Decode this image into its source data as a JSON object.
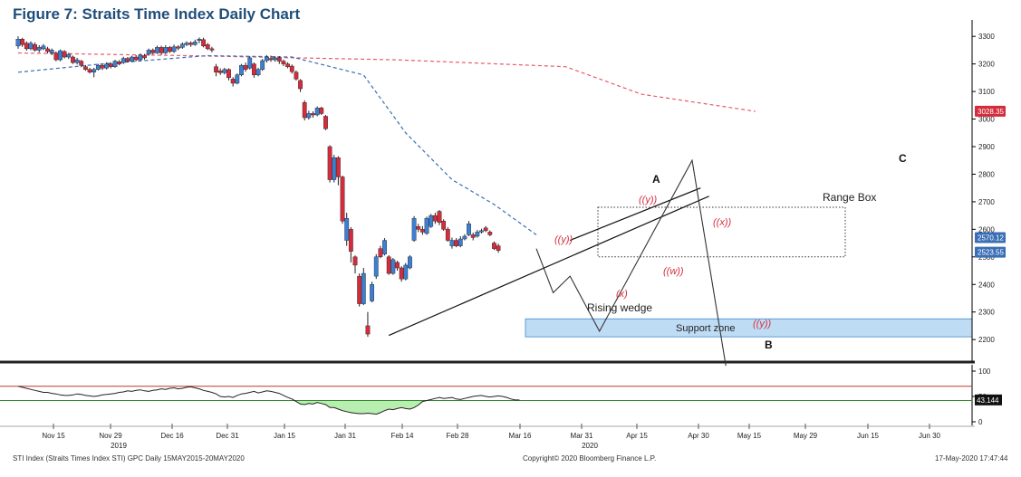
{
  "title": "Figure 7: Straits Time Index Daily Chart",
  "footer": {
    "left": "STI Index (Straits Times Index STI) GPC  Daily 15MAY2015-20MAY2020",
    "center": "Copyright© 2020 Bloomberg Finance L.P.",
    "right": "17-May-2020 17:47:44"
  },
  "chart_data": {
    "type": "candlestick",
    "y_axis": {
      "ticks": [
        2200,
        2300,
        2400,
        2500,
        2600,
        2700,
        2800,
        2900,
        3000,
        3100,
        3200,
        3300
      ],
      "ylim": [
        2125,
        3340
      ]
    },
    "x_axis": {
      "tick_labels": [
        "Nov 15",
        "Nov 29",
        "Dec 16",
        "Dec 31",
        "Jan 15",
        "Jan 31",
        "Feb 14",
        "Feb 28",
        "Mar 16",
        "Mar 31",
        "Apr 15",
        "Apr 30",
        "May 15",
        "May 29",
        "Jun 15",
        "Jun 30"
      ],
      "year_labels": [
        {
          "text": "2019",
          "under": "Nov 29"
        },
        {
          "text": "2020",
          "under": "Mar 31"
        }
      ]
    },
    "last_price_labels": [
      {
        "value": 3028.35,
        "text": "3028.35",
        "color": "#d42c3c"
      },
      {
        "value": 2570.12,
        "text": "2570.12",
        "color": "#3a6fb5"
      },
      {
        "value": 2523.55,
        "text": "2523.55",
        "color": "#3a6fb5"
      }
    ],
    "candles": [
      {
        "o": 3265,
        "c": 3290,
        "h": 3300,
        "l": 3255
      },
      {
        "o": 3290,
        "c": 3270,
        "h": 3295,
        "l": 3262
      },
      {
        "o": 3275,
        "c": 3255,
        "h": 3282,
        "l": 3248
      },
      {
        "o": 3255,
        "c": 3275,
        "h": 3282,
        "l": 3250
      },
      {
        "o": 3270,
        "c": 3250,
        "h": 3278,
        "l": 3245
      },
      {
        "o": 3250,
        "c": 3260,
        "h": 3268,
        "l": 3242
      },
      {
        "o": 3255,
        "c": 3265,
        "h": 3272,
        "l": 3250
      },
      {
        "o": 3255,
        "c": 3245,
        "h": 3262,
        "l": 3238
      },
      {
        "o": 3240,
        "c": 3250,
        "h": 3256,
        "l": 3232
      },
      {
        "o": 3240,
        "c": 3215,
        "h": 3245,
        "l": 3210
      },
      {
        "o": 3215,
        "c": 3248,
        "h": 3252,
        "l": 3210
      },
      {
        "o": 3245,
        "c": 3225,
        "h": 3250,
        "l": 3220
      },
      {
        "o": 3225,
        "c": 3235,
        "h": 3240,
        "l": 3218
      },
      {
        "o": 3225,
        "c": 3205,
        "h": 3230,
        "l": 3200
      },
      {
        "o": 3205,
        "c": 3215,
        "h": 3222,
        "l": 3198
      },
      {
        "o": 3210,
        "c": 3195,
        "h": 3215,
        "l": 3188
      },
      {
        "o": 3190,
        "c": 3180,
        "h": 3196,
        "l": 3175
      },
      {
        "o": 3180,
        "c": 3170,
        "h": 3186,
        "l": 3165
      },
      {
        "o": 3170,
        "c": 3180,
        "h": 3186,
        "l": 3152
      },
      {
        "o": 3180,
        "c": 3195,
        "h": 3200,
        "l": 3176
      },
      {
        "o": 3195,
        "c": 3185,
        "h": 3200,
        "l": 3178
      },
      {
        "o": 3185,
        "c": 3200,
        "h": 3206,
        "l": 3180
      },
      {
        "o": 3200,
        "c": 3190,
        "h": 3206,
        "l": 3184
      },
      {
        "o": 3190,
        "c": 3210,
        "h": 3215,
        "l": 3186
      },
      {
        "o": 3208,
        "c": 3200,
        "h": 3214,
        "l": 3195
      },
      {
        "o": 3205,
        "c": 3220,
        "h": 3226,
        "l": 3200
      },
      {
        "o": 3220,
        "c": 3210,
        "h": 3225,
        "l": 3205
      },
      {
        "o": 3210,
        "c": 3225,
        "h": 3230,
        "l": 3206
      },
      {
        "o": 3225,
        "c": 3215,
        "h": 3232,
        "l": 3210
      },
      {
        "o": 3215,
        "c": 3232,
        "h": 3238,
        "l": 3210
      },
      {
        "o": 3230,
        "c": 3222,
        "h": 3236,
        "l": 3216
      },
      {
        "o": 3235,
        "c": 3250,
        "h": 3256,
        "l": 3230
      },
      {
        "o": 3250,
        "c": 3240,
        "h": 3256,
        "l": 3234
      },
      {
        "o": 3240,
        "c": 3260,
        "h": 3266,
        "l": 3236
      },
      {
        "o": 3260,
        "c": 3240,
        "h": 3266,
        "l": 3232
      },
      {
        "o": 3240,
        "c": 3260,
        "h": 3268,
        "l": 3235
      },
      {
        "o": 3260,
        "c": 3245,
        "h": 3265,
        "l": 3240
      },
      {
        "o": 3245,
        "c": 3262,
        "h": 3270,
        "l": 3240
      },
      {
        "o": 3262,
        "c": 3260,
        "h": 3268,
        "l": 3250
      },
      {
        "o": 3260,
        "c": 3272,
        "h": 3278,
        "l": 3255
      },
      {
        "o": 3270,
        "c": 3276,
        "h": 3282,
        "l": 3265
      },
      {
        "o": 3276,
        "c": 3270,
        "h": 3282,
        "l": 3262
      },
      {
        "o": 3270,
        "c": 3280,
        "h": 3288,
        "l": 3266
      },
      {
        "o": 3285,
        "c": 3290,
        "h": 3296,
        "l": 3275
      },
      {
        "o": 3288,
        "c": 3265,
        "h": 3295,
        "l": 3260
      },
      {
        "o": 3270,
        "c": 3255,
        "h": 3276,
        "l": 3250
      },
      {
        "o": 3255,
        "c": 3250,
        "h": 3262,
        "l": 3242
      },
      {
        "o": 3190,
        "c": 3170,
        "h": 3200,
        "l": 3155
      },
      {
        "o": 3175,
        "c": 3168,
        "h": 3184,
        "l": 3160
      },
      {
        "o": 3168,
        "c": 3180,
        "h": 3186,
        "l": 3162
      },
      {
        "o": 3180,
        "c": 3150,
        "h": 3184,
        "l": 3140
      },
      {
        "o": 3145,
        "c": 3130,
        "h": 3152,
        "l": 3118
      },
      {
        "o": 3130,
        "c": 3160,
        "h": 3166,
        "l": 3126
      },
      {
        "o": 3160,
        "c": 3195,
        "h": 3200,
        "l": 3155
      },
      {
        "o": 3195,
        "c": 3180,
        "h": 3205,
        "l": 3172
      },
      {
        "o": 3185,
        "c": 3222,
        "h": 3228,
        "l": 3180
      },
      {
        "o": 3200,
        "c": 3160,
        "h": 3205,
        "l": 3150
      },
      {
        "o": 3160,
        "c": 3180,
        "h": 3186,
        "l": 3155
      },
      {
        "o": 3180,
        "c": 3212,
        "h": 3218,
        "l": 3175
      },
      {
        "o": 3212,
        "c": 3225,
        "h": 3232,
        "l": 3205
      },
      {
        "o": 3220,
        "c": 3215,
        "h": 3230,
        "l": 3208
      },
      {
        "o": 3215,
        "c": 3222,
        "h": 3228,
        "l": 3208
      },
      {
        "o": 3222,
        "c": 3210,
        "h": 3228,
        "l": 3200
      },
      {
        "o": 3210,
        "c": 3200,
        "h": 3216,
        "l": 3192
      },
      {
        "o": 3200,
        "c": 3190,
        "h": 3206,
        "l": 3184
      },
      {
        "o": 3192,
        "c": 3172,
        "h": 3198,
        "l": 3165
      },
      {
        "o": 3170,
        "c": 3145,
        "h": 3176,
        "l": 3140
      },
      {
        "o": 3140,
        "c": 3110,
        "h": 3145,
        "l": 3098
      },
      {
        "o": 3060,
        "c": 3005,
        "h": 3068,
        "l": 2995
      },
      {
        "o": 3005,
        "c": 3020,
        "h": 3030,
        "l": 2998
      },
      {
        "o": 3020,
        "c": 3015,
        "h": 3028,
        "l": 3005
      },
      {
        "o": 3015,
        "c": 3040,
        "h": 3046,
        "l": 3010
      },
      {
        "o": 3040,
        "c": 3020,
        "h": 3045,
        "l": 3015
      },
      {
        "o": 3010,
        "c": 2965,
        "h": 3015,
        "l": 2960
      },
      {
        "o": 2900,
        "c": 2780,
        "h": 2905,
        "l": 2770
      },
      {
        "o": 2780,
        "c": 2860,
        "h": 2870,
        "l": 2770
      },
      {
        "o": 2860,
        "c": 2790,
        "h": 2865,
        "l": 2760
      },
      {
        "o": 2790,
        "c": 2630,
        "h": 2795,
        "l": 2620
      },
      {
        "o": 2560,
        "c": 2640,
        "h": 2660,
        "l": 2540
      },
      {
        "o": 2600,
        "c": 2520,
        "h": 2608,
        "l": 2480
      },
      {
        "o": 2500,
        "c": 2470,
        "h": 2505,
        "l": 2440
      },
      {
        "o": 2430,
        "c": 2330,
        "h": 2440,
        "l": 2320
      },
      {
        "o": 2330,
        "c": 2440,
        "h": 2460,
        "l": 2325
      },
      {
        "o": 2250,
        "c": 2220,
        "h": 2300,
        "l": 2210
      },
      {
        "o": 2340,
        "c": 2400,
        "h": 2410,
        "l": 2335
      },
      {
        "o": 2430,
        "c": 2500,
        "h": 2510,
        "l": 2420
      },
      {
        "o": 2530,
        "c": 2500,
        "h": 2540,
        "l": 2495
      },
      {
        "o": 2510,
        "c": 2560,
        "h": 2568,
        "l": 2505
      },
      {
        "o": 2500,
        "c": 2440,
        "h": 2506,
        "l": 2435
      },
      {
        "o": 2440,
        "c": 2490,
        "h": 2496,
        "l": 2435
      },
      {
        "o": 2480,
        "c": 2460,
        "h": 2486,
        "l": 2450
      },
      {
        "o": 2460,
        "c": 2420,
        "h": 2466,
        "l": 2410
      },
      {
        "o": 2420,
        "c": 2470,
        "h": 2478,
        "l": 2415
      },
      {
        "o": 2460,
        "c": 2500,
        "h": 2506,
        "l": 2455
      },
      {
        "o": 2560,
        "c": 2640,
        "h": 2648,
        "l": 2555
      },
      {
        "o": 2610,
        "c": 2600,
        "h": 2620,
        "l": 2590
      },
      {
        "o": 2600,
        "c": 2590,
        "h": 2612,
        "l": 2580
      },
      {
        "o": 2585,
        "c": 2640,
        "h": 2646,
        "l": 2580
      },
      {
        "o": 2610,
        "c": 2650,
        "h": 2656,
        "l": 2605
      },
      {
        "o": 2650,
        "c": 2630,
        "h": 2660,
        "l": 2620
      },
      {
        "o": 2665,
        "c": 2625,
        "h": 2670,
        "l": 2615
      },
      {
        "o": 2630,
        "c": 2600,
        "h": 2636,
        "l": 2595
      },
      {
        "o": 2600,
        "c": 2560,
        "h": 2608,
        "l": 2555
      },
      {
        "o": 2540,
        "c": 2560,
        "h": 2570,
        "l": 2530
      },
      {
        "o": 2560,
        "c": 2540,
        "h": 2568,
        "l": 2535
      },
      {
        "o": 2540,
        "c": 2565,
        "h": 2575,
        "l": 2535
      },
      {
        "o": 2565,
        "c": 2575,
        "h": 2582,
        "l": 2560
      },
      {
        "o": 2580,
        "c": 2620,
        "h": 2630,
        "l": 2575
      },
      {
        "o": 2580,
        "c": 2570,
        "h": 2588,
        "l": 2560
      },
      {
        "o": 2575,
        "c": 2590,
        "h": 2598,
        "l": 2570
      },
      {
        "o": 2590,
        "c": 2595,
        "h": 2602,
        "l": 2585
      },
      {
        "o": 2605,
        "c": 2595,
        "h": 2612,
        "l": 2590
      },
      {
        "o": 2590,
        "c": 2580,
        "h": 2596,
        "l": 2575
      },
      {
        "o": 2550,
        "c": 2530,
        "h": 2556,
        "l": 2525
      },
      {
        "o": 2540,
        "c": 2523,
        "h": 2548,
        "l": 2515
      }
    ],
    "moving_averages": [
      {
        "name": "",
        "color": "#e85a6c",
        "style": "dashed",
        "x": [
          0,
          40,
          90,
          130,
          148,
          175
        ],
        "y": [
          3240,
          3230,
          3215,
          3190,
          3090,
          3028
        ]
      },
      {
        "name": "",
        "color": "#3a6fb5",
        "style": "dashed",
        "x": [
          0,
          20,
          45,
          65,
          82,
          92,
          103,
          113,
          123
        ],
        "y": [
          3170,
          3200,
          3230,
          3225,
          3160,
          2950,
          2780,
          2690,
          2580
        ]
      }
    ],
    "support_zone": {
      "label": "Support zone",
      "y_range": [
        2210,
        2275
      ]
    },
    "range_box": {
      "label": "Range Box",
      "y_range": [
        2500,
        2680
      ]
    },
    "annotations": [
      {
        "text": "A"
      },
      {
        "text": "B"
      },
      {
        "text": "C"
      },
      {
        "text": "((y))"
      },
      {
        "text": "((x))"
      },
      {
        "text": "((w))"
      },
      {
        "text": "((y))"
      },
      {
        "text": "(x)"
      },
      {
        "text": "((y))"
      },
      {
        "text": "Rising wedge"
      }
    ],
    "projection_path": {
      "x": [
        123,
        127,
        131,
        138,
        160,
        168
      ],
      "y": [
        2530,
        2370,
        2430,
        2230,
        2850,
        2105
      ]
    },
    "rsi": {
      "current": "43.144",
      "ticks": [
        0,
        50,
        100
      ],
      "upper_line": 70,
      "lower_line": 42,
      "values": [
        70,
        68,
        66,
        64,
        62,
        60,
        58,
        58,
        56,
        55,
        53,
        52,
        52,
        53,
        55,
        54,
        52,
        51,
        50,
        51,
        53,
        54,
        55,
        56,
        58,
        59,
        61,
        60,
        62,
        63,
        61,
        60,
        62,
        63,
        65,
        64,
        66,
        67,
        65,
        66,
        68,
        69,
        67,
        65,
        62,
        60,
        58,
        55,
        50,
        49,
        50,
        48,
        52,
        55,
        56,
        58,
        60,
        57,
        59,
        61,
        60,
        58,
        56,
        52,
        48,
        45,
        40,
        35,
        34,
        36,
        35,
        38,
        36,
        34,
        28,
        28,
        25,
        22,
        20,
        18,
        17,
        16,
        16,
        17,
        16,
        15,
        18,
        22,
        25,
        24,
        26,
        28,
        26,
        25,
        28,
        33,
        40,
        42,
        44,
        46,
        48,
        46,
        47,
        48,
        45,
        44,
        46,
        48,
        50,
        51,
        52,
        50,
        49,
        50,
        51,
        50,
        48,
        45,
        43,
        43
      ]
    }
  }
}
